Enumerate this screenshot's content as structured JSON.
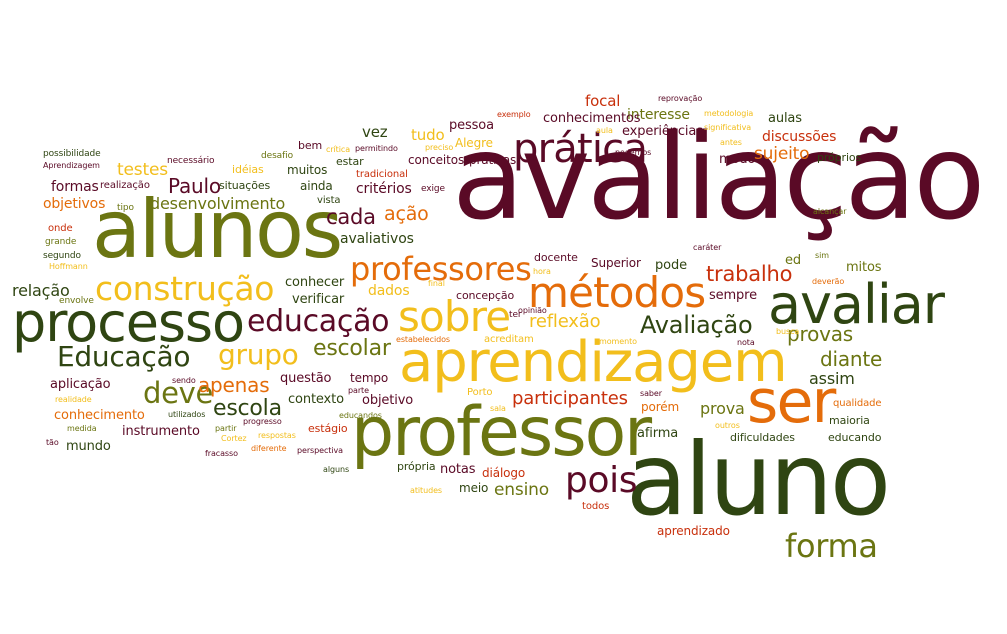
{
  "palette": {
    "maroon": "#5a0a26",
    "darkgreen": "#2f4512",
    "olive": "#6b7512",
    "orange": "#e46c0a",
    "yellow": "#f2be1c",
    "red": "#c8300c"
  },
  "words": [
    {
      "text": "avaliação",
      "color": "maroon"
    },
    {
      "text": "alunos",
      "color": "olive"
    },
    {
      "text": "aluno",
      "color": "darkgreen"
    },
    {
      "text": "professor",
      "color": "olive"
    },
    {
      "text": "aprendizagem",
      "color": "yellow"
    },
    {
      "text": "processo",
      "color": "darkgreen"
    },
    {
      "text": "avaliar",
      "color": "darkgreen"
    },
    {
      "text": "ser",
      "color": "orange"
    },
    {
      "text": "métodos",
      "color": "orange"
    },
    {
      "text": "sobre",
      "color": "yellow"
    },
    {
      "text": "prática",
      "color": "maroon"
    },
    {
      "text": "construção",
      "color": "yellow"
    },
    {
      "text": "professores",
      "color": "orange"
    },
    {
      "text": "educação",
      "color": "maroon"
    },
    {
      "text": "forma",
      "color": "olive"
    },
    {
      "text": "Educação",
      "color": "darkgreen"
    },
    {
      "text": "Avaliação",
      "color": "darkgreen"
    },
    {
      "text": "grupo",
      "color": "yellow"
    },
    {
      "text": "deve",
      "color": "olive"
    },
    {
      "text": "pois",
      "color": "maroon"
    },
    {
      "text": "escolar",
      "color": "olive"
    },
    {
      "text": "escola",
      "color": "darkgreen"
    },
    {
      "text": "trabalho",
      "color": "red"
    },
    {
      "text": "provas",
      "color": "olive"
    },
    {
      "text": "diante",
      "color": "olive"
    },
    {
      "text": "cada",
      "color": "maroon"
    },
    {
      "text": "ação",
      "color": "orange"
    },
    {
      "text": "Paulo",
      "color": "maroon"
    },
    {
      "text": "apenas",
      "color": "orange"
    },
    {
      "text": "testes",
      "color": "yellow"
    },
    {
      "text": "relação",
      "color": "darkgreen"
    },
    {
      "text": "reflexão",
      "color": "yellow"
    },
    {
      "text": "participantes",
      "color": "red"
    },
    {
      "text": "ensino",
      "color": "olive"
    },
    {
      "text": "prova",
      "color": "olive"
    },
    {
      "text": "assim",
      "color": "darkgreen"
    },
    {
      "text": "desenvolvimento",
      "color": "olive"
    },
    {
      "text": "formas",
      "color": "maroon"
    },
    {
      "text": "objetivos",
      "color": "orange"
    },
    {
      "text": "tudo",
      "color": "yellow"
    },
    {
      "text": "vez",
      "color": "darkgreen"
    },
    {
      "text": "pessoa",
      "color": "maroon"
    },
    {
      "text": "focal",
      "color": "red"
    },
    {
      "text": "interesse",
      "color": "olive"
    },
    {
      "text": "conhecimentos",
      "color": "maroon"
    },
    {
      "text": "experiências",
      "color": "maroon"
    },
    {
      "text": "discussões",
      "color": "red"
    },
    {
      "text": "aulas",
      "color": "darkgreen"
    },
    {
      "text": "sujeito",
      "color": "orange"
    },
    {
      "text": "modo",
      "color": "maroon"
    },
    {
      "text": "próprios",
      "color": "darkgreen"
    },
    {
      "text": "critérios",
      "color": "maroon"
    },
    {
      "text": "avaliativos",
      "color": "darkgreen"
    },
    {
      "text": "dados",
      "color": "yellow"
    },
    {
      "text": "verificar",
      "color": "darkgreen"
    },
    {
      "text": "conhecer",
      "color": "darkgreen"
    },
    {
      "text": "mitos",
      "color": "olive"
    },
    {
      "text": "sempre",
      "color": "maroon"
    },
    {
      "text": "pode",
      "color": "darkgreen"
    },
    {
      "text": "ed",
      "color": "olive"
    },
    {
      "text": "Superior",
      "color": "maroon"
    },
    {
      "text": "docente",
      "color": "maroon"
    },
    {
      "text": "concepção",
      "color": "maroon"
    },
    {
      "text": "questão",
      "color": "maroon"
    },
    {
      "text": "tempo",
      "color": "maroon"
    },
    {
      "text": "contexto",
      "color": "darkgreen"
    },
    {
      "text": "objetivo",
      "color": "maroon"
    },
    {
      "text": "afirma",
      "color": "darkgreen"
    },
    {
      "text": "dificuldades",
      "color": "darkgreen"
    },
    {
      "text": "educando",
      "color": "darkgreen"
    },
    {
      "text": "maioria",
      "color": "darkgreen"
    },
    {
      "text": "qualidade",
      "color": "orange"
    },
    {
      "text": "porém",
      "color": "orange"
    },
    {
      "text": "aprendizado",
      "color": "red"
    },
    {
      "text": "notas",
      "color": "maroon"
    },
    {
      "text": "meio",
      "color": "darkgreen"
    },
    {
      "text": "própria",
      "color": "darkgreen"
    },
    {
      "text": "diálogo",
      "color": "red"
    },
    {
      "text": "todos",
      "color": "red"
    },
    {
      "text": "instrumento",
      "color": "maroon"
    },
    {
      "text": "mundo",
      "color": "darkgreen"
    },
    {
      "text": "aplicação",
      "color": "maroon"
    },
    {
      "text": "conhecimento",
      "color": "orange"
    },
    {
      "text": "estágio",
      "color": "red"
    },
    {
      "text": "Porto",
      "color": "yellow"
    },
    {
      "text": "Alegre",
      "color": "yellow"
    },
    {
      "text": "acreditam",
      "color": "yellow"
    },
    {
      "text": "conceitos",
      "color": "maroon"
    },
    {
      "text": "práticas",
      "color": "maroon"
    },
    {
      "text": "tradicional",
      "color": "red"
    },
    {
      "text": "estar",
      "color": "darkgreen"
    },
    {
      "text": "muitos",
      "color": "darkgreen"
    },
    {
      "text": "ainda",
      "color": "darkgreen"
    },
    {
      "text": "vista",
      "color": "darkgreen"
    },
    {
      "text": "bem",
      "color": "maroon"
    },
    {
      "text": "idéias",
      "color": "yellow"
    },
    {
      "text": "situações",
      "color": "darkgreen"
    },
    {
      "text": "realização",
      "color": "maroon"
    },
    {
      "text": "onde",
      "color": "red"
    },
    {
      "text": "grande",
      "color": "olive"
    },
    {
      "text": "segundo",
      "color": "darkgreen"
    },
    {
      "text": "Hoffmann",
      "color": "yellow"
    },
    {
      "text": "envolve",
      "color": "olive"
    },
    {
      "text": "possibilidade",
      "color": "darkgreen"
    },
    {
      "text": "Aprendizagem",
      "color": "maroon"
    },
    {
      "text": "necessário",
      "color": "maroon"
    },
    {
      "text": "desafio",
      "color": "olive"
    },
    {
      "text": "tipo",
      "color": "olive"
    },
    {
      "text": "crítica",
      "color": "yellow"
    },
    {
      "text": "permitindo",
      "color": "maroon"
    },
    {
      "text": "preciso",
      "color": "yellow"
    },
    {
      "text": "exige",
      "color": "maroon"
    },
    {
      "text": "exemplo",
      "color": "red"
    },
    {
      "text": "reprovação",
      "color": "maroon"
    },
    {
      "text": "metodologia",
      "color": "yellow"
    },
    {
      "text": "significativa",
      "color": "yellow"
    },
    {
      "text": "aula",
      "color": "yellow"
    },
    {
      "text": "antes",
      "color": "yellow"
    },
    {
      "text": "podemos",
      "color": "maroon"
    },
    {
      "text": "alcançar",
      "color": "olive"
    },
    {
      "text": "sim",
      "color": "olive"
    },
    {
      "text": "deverão",
      "color": "orange"
    },
    {
      "text": "caráter",
      "color": "maroon"
    },
    {
      "text": "hora",
      "color": "yellow"
    },
    {
      "text": "final",
      "color": "yellow"
    },
    {
      "text": "ter",
      "color": "maroon"
    },
    {
      "text": "opinião",
      "color": "maroon"
    },
    {
      "text": "estabelecidos",
      "color": "orange"
    },
    {
      "text": "momento",
      "color": "yellow"
    },
    {
      "text": "nota",
      "color": "maroon"
    },
    {
      "text": "busca",
      "color": "yellow"
    },
    {
      "text": "saber",
      "color": "maroon"
    },
    {
      "text": "sala",
      "color": "yellow"
    },
    {
      "text": "outros",
      "color": "yellow"
    },
    {
      "text": "educandos",
      "color": "olive"
    },
    {
      "text": "parte",
      "color": "maroon"
    },
    {
      "text": "perspectiva",
      "color": "maroon"
    },
    {
      "text": "alguns",
      "color": "darkgreen"
    },
    {
      "text": "atitudes",
      "color": "yellow"
    },
    {
      "text": "diferente",
      "color": "orange"
    },
    {
      "text": "respostas",
      "color": "yellow"
    },
    {
      "text": "progresso",
      "color": "maroon"
    },
    {
      "text": "partir",
      "color": "olive"
    },
    {
      "text": "Cortez",
      "color": "yellow"
    },
    {
      "text": "fracasso",
      "color": "maroon"
    },
    {
      "text": "utilizados",
      "color": "darkgreen"
    },
    {
      "text": "sendo",
      "color": "maroon"
    },
    {
      "text": "realidade",
      "color": "yellow"
    },
    {
      "text": "medida",
      "color": "olive"
    },
    {
      "text": "tão",
      "color": "maroon"
    }
  ]
}
